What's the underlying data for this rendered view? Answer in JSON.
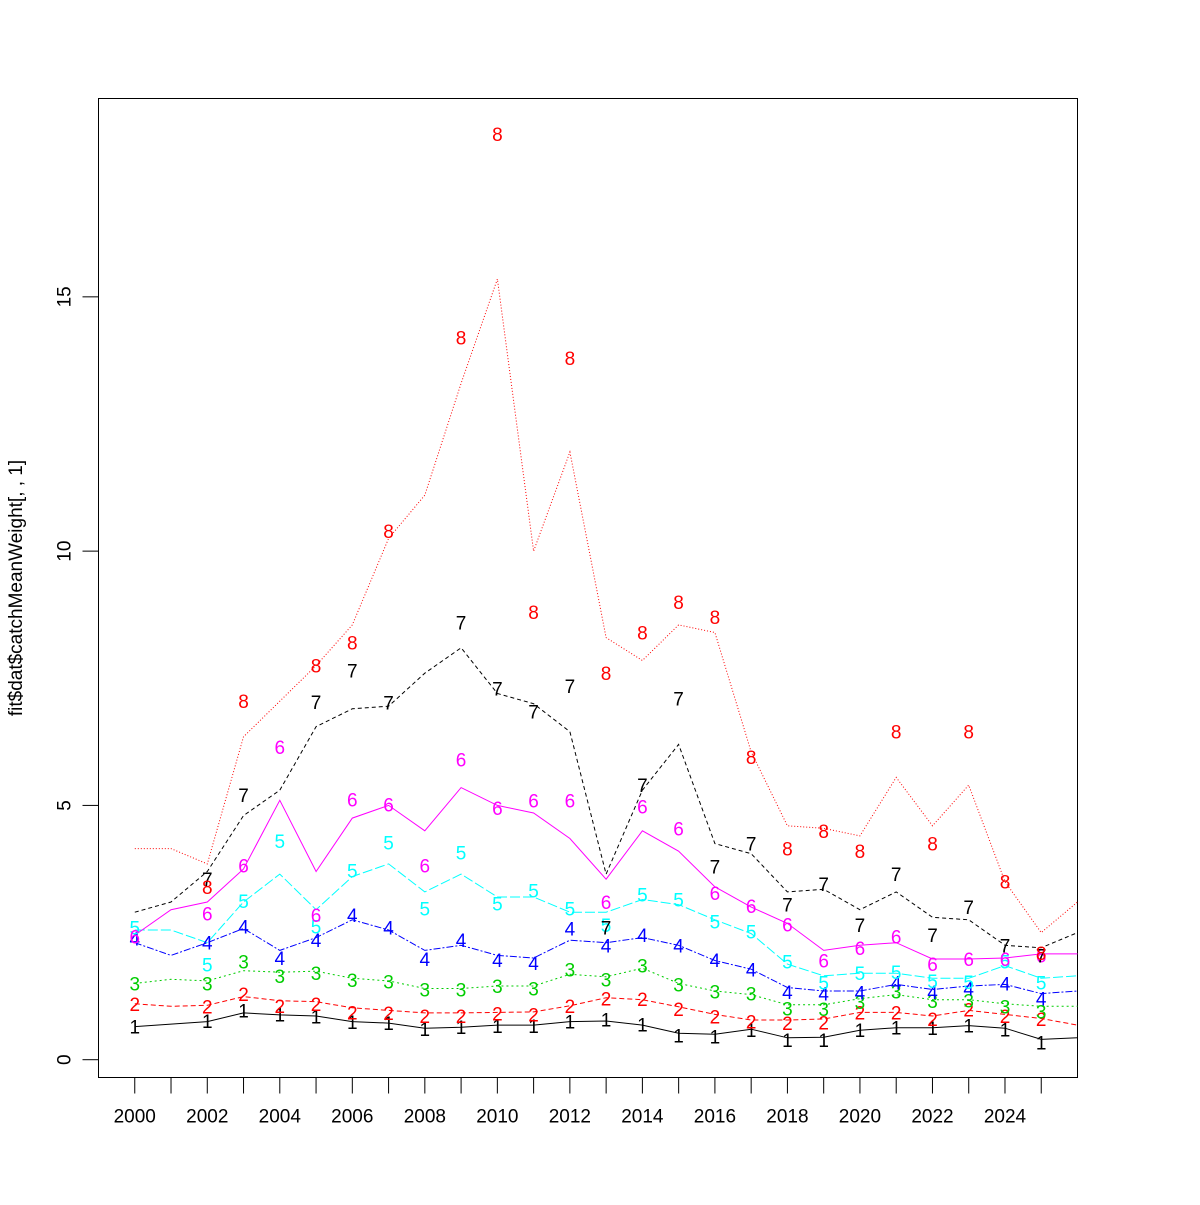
{
  "chart_data": {
    "type": "line",
    "title": "",
    "xlabel": "",
    "ylabel": "fit$dat$catchMeanWeight[, , 1]",
    "xlim": [
      1999,
      2026
    ],
    "ylim": [
      -0.35,
      18.9
    ],
    "x_ticks": [
      2000,
      2001,
      2002,
      2003,
      2004,
      2005,
      2006,
      2007,
      2008,
      2009,
      2010,
      2011,
      2012,
      2013,
      2014,
      2015,
      2016,
      2017,
      2018,
      2019,
      2020,
      2021,
      2022,
      2023,
      2024,
      2025
    ],
    "x_tick_labels": [
      "2000",
      "",
      "2002",
      "",
      "2004",
      "",
      "2006",
      "",
      "2008",
      "",
      "2010",
      "",
      "2012",
      "",
      "2014",
      "",
      "2016",
      "",
      "2018",
      "",
      "2020",
      "",
      "2022",
      "",
      "2024",
      ""
    ],
    "y_ticks": [
      0,
      5,
      10,
      15
    ],
    "y_tick_labels": [
      "0",
      "5",
      "10",
      "15"
    ],
    "grid": false,
    "legend": "none",
    "x": [
      2000,
      2001,
      2002,
      2003,
      2004,
      2005,
      2006,
      2007,
      2008,
      2009,
      2010,
      2011,
      2012,
      2013,
      2014,
      2015,
      2016,
      2017,
      2018,
      2019,
      2020,
      2021,
      2022,
      2023,
      2024,
      2025,
      2026
    ],
    "label_x": [
      2000,
      2001,
      2002,
      2003,
      2004,
      2005,
      2006,
      2007,
      2008,
      2009,
      2010,
      2011,
      2012,
      2013,
      2014,
      2015,
      2016,
      2017,
      2018,
      2019,
      2020,
      2021,
      2022,
      2023,
      2024,
      2025
    ],
    "series": [
      {
        "label": "1",
        "color": "#000000",
        "dash": "",
        "line": [
          0.65,
          0.7,
          0.75,
          0.92,
          0.88,
          0.86,
          0.75,
          0.72,
          0.62,
          0.64,
          0.68,
          0.68,
          0.75,
          0.76,
          0.68,
          0.52,
          0.5,
          0.6,
          0.43,
          0.44,
          0.58,
          0.63,
          0.63,
          0.67,
          0.62,
          0.4,
          0.43
        ],
        "points": [
          0.65,
          null,
          0.76,
          0.97,
          0.89,
          0.85,
          0.74,
          0.72,
          0.6,
          0.64,
          0.66,
          0.66,
          0.75,
          0.79,
          0.69,
          0.48,
          0.46,
          0.58,
          0.39,
          0.39,
          0.58,
          0.63,
          0.62,
          0.67,
          0.59,
          0.34
        ]
      },
      {
        "label": "2",
        "color": "#ff0000",
        "dash": "5,3",
        "line": [
          1.1,
          1.05,
          1.07,
          1.24,
          1.16,
          1.14,
          1.02,
          0.97,
          0.92,
          0.92,
          0.93,
          0.94,
          1.06,
          1.22,
          1.18,
          1.04,
          0.89,
          0.78,
          0.78,
          0.8,
          0.93,
          0.93,
          0.86,
          0.97,
          0.89,
          0.81,
          0.68
        ],
        "points": [
          1.1,
          null,
          1.05,
          1.29,
          1.06,
          1.1,
          0.93,
          0.92,
          0.86,
          0.86,
          0.91,
          0.89,
          1.06,
          1.2,
          1.19,
          1.0,
          0.85,
          0.75,
          0.72,
          0.73,
          0.93,
          0.93,
          0.8,
          0.99,
          0.86,
          0.8
        ]
      },
      {
        "label": "3",
        "color": "#00cd00",
        "dash": "2,3",
        "line": [
          1.5,
          1.58,
          1.55,
          1.75,
          1.72,
          1.74,
          1.6,
          1.55,
          1.4,
          1.4,
          1.45,
          1.45,
          1.68,
          1.63,
          1.8,
          1.5,
          1.35,
          1.28,
          1.08,
          1.08,
          1.2,
          1.28,
          1.18,
          1.18,
          1.1,
          1.05,
          1.05
        ],
        "points": [
          1.5,
          null,
          1.5,
          1.93,
          1.65,
          1.7,
          1.57,
          1.54,
          1.38,
          1.38,
          1.45,
          1.4,
          1.77,
          1.58,
          1.85,
          1.48,
          1.34,
          1.3,
          1.01,
          1.0,
          1.13,
          1.34,
          1.15,
          1.16,
          1.05,
          0.95
        ]
      },
      {
        "label": "4",
        "color": "#0000ff",
        "dash": "7,2,2,2",
        "line": [
          2.3,
          2.05,
          2.3,
          2.58,
          2.15,
          2.4,
          2.75,
          2.55,
          2.15,
          2.25,
          2.05,
          2.0,
          2.35,
          2.3,
          2.4,
          2.25,
          1.95,
          1.78,
          1.42,
          1.35,
          1.35,
          1.48,
          1.38,
          1.45,
          1.48,
          1.3,
          1.35
        ],
        "points": [
          2.38,
          null,
          2.3,
          2.62,
          2.0,
          2.35,
          2.85,
          2.6,
          1.98,
          2.35,
          1.96,
          1.9,
          2.58,
          2.25,
          2.45,
          2.25,
          1.96,
          1.77,
          1.33,
          1.3,
          1.32,
          1.52,
          1.33,
          1.4,
          1.5,
          1.2
        ]
      },
      {
        "label": "5",
        "color": "#00ffff",
        "dash": "10,3",
        "line": [
          2.55,
          2.55,
          2.3,
          3.1,
          3.65,
          2.95,
          3.6,
          3.85,
          3.3,
          3.65,
          3.2,
          3.2,
          2.9,
          2.9,
          3.15,
          3.05,
          2.75,
          2.48,
          1.88,
          1.65,
          1.7,
          1.7,
          1.6,
          1.6,
          1.85,
          1.6,
          1.65
        ],
        "points": [
          2.6,
          null,
          1.87,
          3.12,
          4.3,
          2.62,
          3.72,
          4.27,
          2.97,
          4.07,
          3.07,
          3.33,
          2.97,
          2.65,
          3.25,
          3.15,
          2.72,
          2.52,
          1.93,
          1.52,
          1.7,
          1.72,
          1.55,
          1.53,
          1.93,
          1.52
        ]
      },
      {
        "label": "6",
        "color": "#ff00ff",
        "dash": "",
        "line": [
          2.45,
          2.95,
          3.1,
          3.75,
          5.1,
          3.7,
          4.75,
          5.0,
          4.5,
          5.35,
          5.0,
          4.85,
          4.35,
          3.55,
          4.5,
          4.1,
          3.4,
          3.0,
          2.68,
          2.15,
          2.25,
          2.3,
          1.98,
          1.98,
          2.0,
          2.08,
          2.08
        ],
        "points": [
          2.42,
          null,
          2.87,
          3.82,
          6.15,
          2.85,
          5.12,
          5.02,
          3.82,
          5.9,
          4.95,
          5.1,
          5.1,
          3.1,
          4.98,
          4.55,
          3.28,
          3.02,
          2.66,
          1.95,
          2.2,
          2.42,
          1.88,
          1.98,
          1.98,
          2.05
        ]
      },
      {
        "label": "7",
        "color": "#000000",
        "dash": "4,3",
        "line": [
          2.9,
          3.1,
          3.7,
          4.8,
          5.3,
          6.55,
          6.9,
          6.95,
          7.6,
          8.1,
          7.2,
          7.0,
          6.45,
          3.65,
          5.3,
          6.2,
          4.25,
          4.05,
          3.3,
          3.35,
          2.95,
          3.3,
          2.8,
          2.75,
          2.25,
          2.2,
          2.5
        ],
        "points": [
          null,
          null,
          3.55,
          5.2,
          null,
          7.03,
          7.65,
          7.02,
          null,
          8.6,
          7.3,
          6.85,
          7.35,
          2.6,
          5.4,
          7.1,
          3.8,
          4.25,
          3.05,
          3.45,
          2.65,
          3.65,
          2.45,
          3.0,
          2.25,
          2.05
        ]
      },
      {
        "label": "8",
        "color": "#ff0000",
        "dash": "1,2",
        "line": [
          4.15,
          4.15,
          3.85,
          6.35,
          7.05,
          7.75,
          8.55,
          10.25,
          11.1,
          13.3,
          15.35,
          10.0,
          11.95,
          8.3,
          7.85,
          8.55,
          8.4,
          6.05,
          4.6,
          4.55,
          4.4,
          5.55,
          4.6,
          5.4,
          3.5,
          2.5,
          3.1
        ],
        "points": [
          null,
          null,
          3.4,
          7.05,
          null,
          7.75,
          8.2,
          10.4,
          null,
          14.2,
          18.2,
          8.8,
          13.8,
          7.6,
          8.4,
          9.0,
          8.7,
          5.95,
          4.15,
          4.5,
          4.1,
          6.45,
          4.25,
          6.45,
          3.5,
          2.1
        ]
      }
    ]
  }
}
